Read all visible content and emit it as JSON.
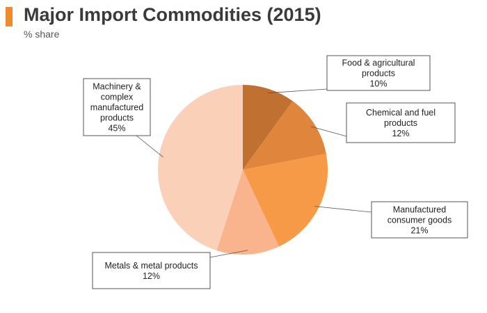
{
  "header": {
    "title": "Major Import Commodities (2015)",
    "subtitle": "% share"
  },
  "colors": {
    "accent": "#f08a2c"
  },
  "chart_data": {
    "type": "pie",
    "title": "Major Import Commodities (2015)",
    "subtitle": "% share",
    "start": "12 o'clock",
    "direction": "clockwise",
    "slices": [
      {
        "label_lines": [
          "Food & agricultural",
          "products"
        ],
        "value": 10,
        "value_label": "10%",
        "color": "#c07030"
      },
      {
        "label_lines": [
          "Chemical and fuel",
          "products"
        ],
        "value": 12,
        "value_label": "12%",
        "color": "#e0853c"
      },
      {
        "label_lines": [
          "Manufactured",
          "consumer goods"
        ],
        "value": 21,
        "value_label": "21%",
        "color": "#f79a48"
      },
      {
        "label_lines": [
          "Metals & metal products"
        ],
        "value": 12,
        "value_label": "12%",
        "color": "#f9b48e"
      },
      {
        "label_lines": [
          "Machinery &",
          "complex",
          "manufactured",
          "products"
        ],
        "value": 45,
        "value_label": "45%",
        "color": "#fbd0b9"
      }
    ]
  }
}
